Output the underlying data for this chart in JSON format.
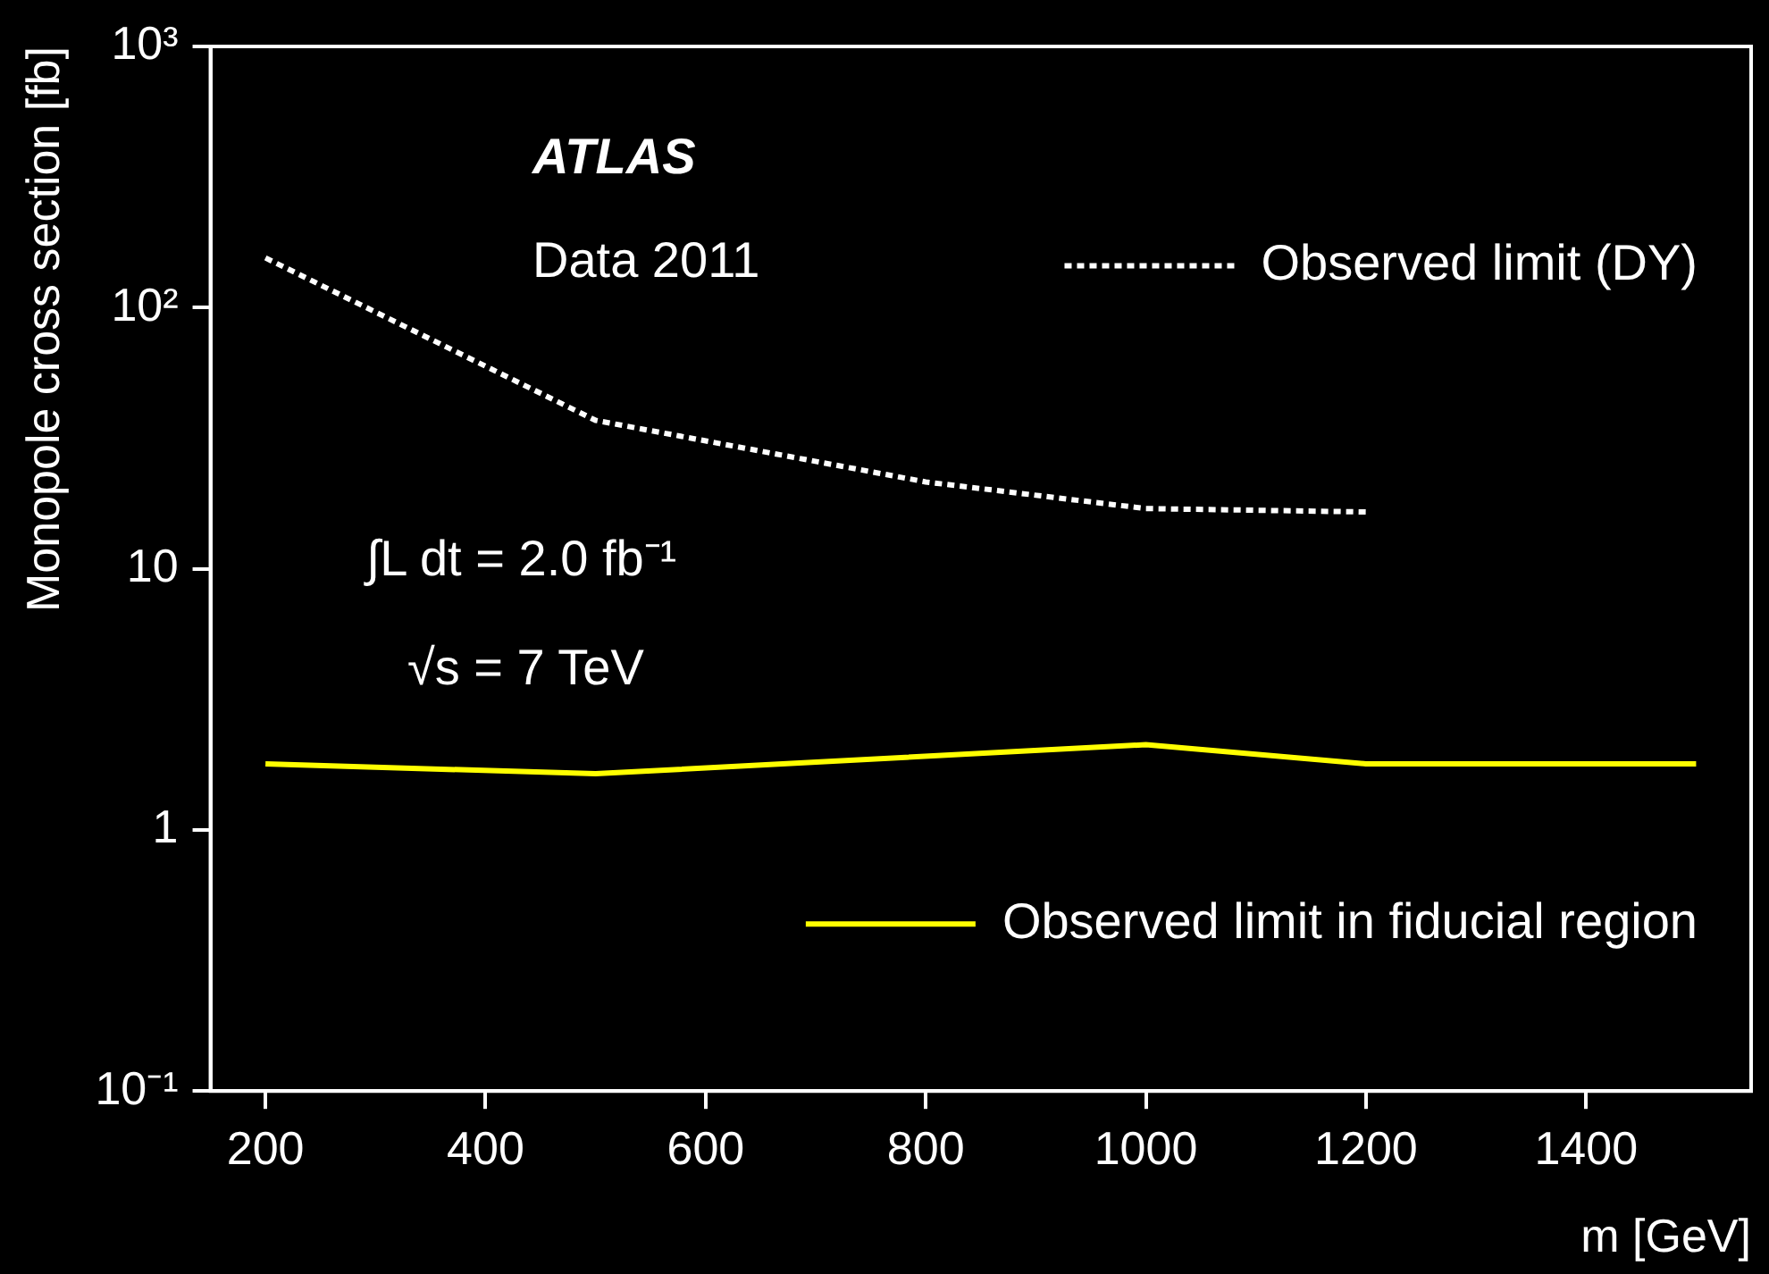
{
  "chart_data": {
    "type": "line",
    "xlabel": "m [GeV]",
    "ylabel": "Monopole cross section [fb]",
    "log": "y",
    "xlim": [
      150,
      1550
    ],
    "xticks": [
      200,
      400,
      600,
      800,
      1000,
      1200,
      1400
    ],
    "ylim": [
      0.1,
      1000
    ],
    "yticks": [
      {
        "value": 0.1,
        "label": "10⁻¹"
      },
      1,
      10,
      {
        "value": 100,
        "label": "10²"
      },
      {
        "value": 1000,
        "label": "10³"
      }
    ],
    "grid": false,
    "legend": "right",
    "marker": "none",
    "series": [
      {
        "name": "Observed limit (DY)",
        "color": "#ffffff",
        "line_style": "dashed",
        "x": [
          200,
          500,
          800,
          1000,
          1200
        ],
        "values": [
          155,
          37,
          21.5,
          17,
          16.5
        ]
      },
      {
        "name": "Observed limit in fiducial region",
        "color": "#ffff00",
        "line_style": "solid",
        "x": [
          200,
          500,
          1000,
          1200,
          1500
        ],
        "values": [
          1.79,
          1.64,
          2.12,
          1.79,
          1.79
        ]
      }
    ],
    "annotations": [
      "ATLAS",
      "Data 2011",
      "∫L dt = 2.0 fb⁻¹",
      "√s = 7 TeV"
    ]
  }
}
